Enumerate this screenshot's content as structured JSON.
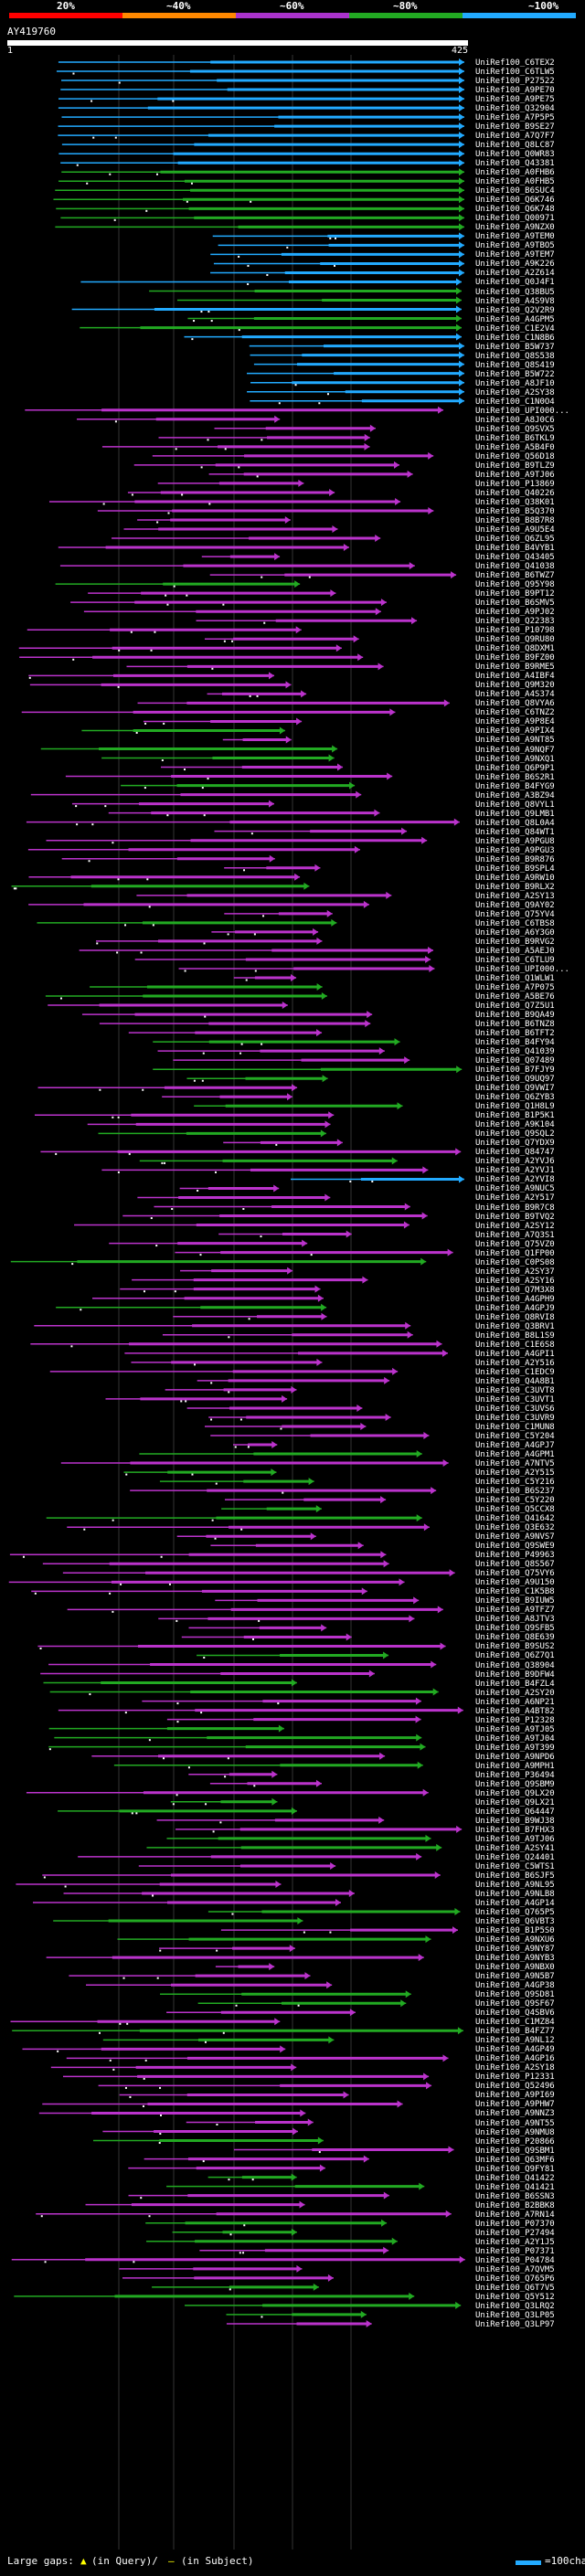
{
  "query": {
    "id": "AY419760",
    "start": "1",
    "end": "425"
  },
  "scale": {
    "labels": [
      "20%",
      "~40%",
      "~60%",
      "~80%",
      "~100%"
    ],
    "colors": [
      "#ff0000",
      "#ff8800",
      "#aa33cc",
      "#22aa22",
      "#22aaff"
    ]
  },
  "legend": {
    "gaps_label": "Large gaps:",
    "gap_query_symbol": "▲",
    "gap_query_text": "(in Query)/",
    "gap_subject_symbol": "—",
    "gap_subject_text": "(in Subject)",
    "scale_text": "=100char."
  },
  "hits": [
    "UniRef100_C6TEX2",
    "UniRef100_C6TLW5",
    "UniRef100_P27522",
    "UniRef100_A9PE70",
    "UniRef100_A9PE75",
    "UniRef100_Q32904",
    "UniRef100_A7P5P5",
    "UniRef100_B9SE27",
    "UniRef100_A7Q7F7",
    "UniRef100_Q8LC87",
    "UniRef100_Q0WR83",
    "UniRef100_Q43381",
    "UniRef100_A0FHB6",
    "UniRef100_A0FHB5",
    "UniRef100_B6SUC4",
    "UniRef100_Q6K746",
    "UniRef100_Q6K748",
    "UniRef100_Q00971",
    "UniRef100_A9NZX0",
    "UniRef100_A9TEM0",
    "UniRef100_A9TBO5",
    "UniRef100_A9TEM7",
    "UniRef100_A9K226",
    "UniRef100_A2Z614",
    "UniRef100_Q0J4F1",
    "UniRef100_Q38BU5",
    "UniRef100_A4S9V8",
    "UniRef100_Q2V2R9",
    "UniRef100_A4GPM5",
    "UniRef100_C1E2V4",
    "UniRef100_C1N8B6",
    "UniRef100_B5W737",
    "UniRef100_Q8S538",
    "UniRef100_Q8S419",
    "UniRef100_B5W722",
    "UniRef100_A8JF10",
    "UniRef100_A2SY38",
    "UniRef100_C1N0O4",
    "UniRef100_UPI000...",
    "UniRef100_A8J0C6",
    "UniRef100_Q9SVX5",
    "UniRef100_B6TKL9",
    "UniRef100_A5B4F0",
    "UniRef100_Q56D18",
    "UniRef100_B9TLZ9",
    "UniRef100_A9TJ06",
    "UniRef100_P13869",
    "UniRef100_Q40226",
    "UniRef100_Q38K01",
    "UniRef100_B5Q370",
    "UniRef100_B8B7R8",
    "UniRef100_A9U5E4",
    "UniRef100_Q6ZL95",
    "UniRef100_B4VYB1",
    "UniRef100_Q43405",
    "UniRef100_Q41038",
    "UniRef100_B6TWZ7",
    "UniRef100_Q95Y98",
    "UniRef100_B9PT12",
    "UniRef100_B6SMV5",
    "UniRef100_A9PJ02",
    "UniRef100_Q22383",
    "UniRef100_P10798",
    "UniRef100_Q9RU80",
    "UniRef100_Q8DXM1",
    "UniRef100_B9FZ00",
    "UniRef100_B9RME5",
    "UniRef100_A4IBF4",
    "UniRef100_Q9M320",
    "UniRef100_A4S374",
    "UniRef100_Q8VYA6",
    "UniRef100_C6TNZ2",
    "UniRef100_A9P8E4",
    "UniRef100_A9PIX4",
    "UniRef100_A9NT85",
    "UniRef100_A9NQF7",
    "UniRef100_A9NXQ1",
    "UniRef100_Q6P9P1",
    "UniRef100_B6S2R1",
    "UniRef100_B4FYG9",
    "UniRef100_A3BZ94",
    "UniRef100_Q8VYL1",
    "UniRef100_Q9LMB1",
    "UniRef100_Q8L0A4",
    "UniRef100_Q84WT1",
    "UniRef100_A9PGU8",
    "UniRef100_A9PGU3",
    "UniRef100_B9R876",
    "UniRef100_B9SPL4",
    "UniRef100_A9RW10",
    "UniRef100_B9RLX2",
    "UniRef100_A2SY13",
    "UniRef100_Q9AY02",
    "UniRef100_Q75YV4",
    "UniRef100_C6TBS8",
    "UniRef100_A6Y3G0",
    "UniRef100_B9RVG2",
    "UniRef100_A5AEJ0",
    "UniRef100_C6TLU9",
    "UniRef100_UPI000...",
    "UniRef100_Q1WLW1",
    "UniRef100_A7P075",
    "UniRef100_A5BE76",
    "UniRef100_Q7Z5U1",
    "UniRef100_B9QA49",
    "UniRef100_B6TNZ8",
    "UniRef100_B6TFT2",
    "UniRef100_B4FY94",
    "UniRef100_Q41039",
    "UniRef100_Q07489",
    "UniRef100_B7FJY9",
    "UniRef100_Q9UQ97",
    "UniRef100_Q9VWI7",
    "UniRef100_Q6ZYB3",
    "UniRef100_Q1H8L9",
    "UniRef100_B1P5K1",
    "UniRef100_A9K104",
    "UniRef100_Q9SQL2",
    "UniRef100_Q7YDX9",
    "UniRef100_Q84747",
    "UniRef100_A2YVJ6",
    "UniRef100_A2YVJ1",
    "UniRef100_A2YVI8",
    "UniRef100_A9NUC5",
    "UniRef100_A2Y517",
    "UniRef100_B9R7C8",
    "UniRef100_B9TVQ2",
    "UniRef100_A2SY12",
    "UniRef100_A7Q3S1",
    "UniRef100_Q75VZ0",
    "UniRef100_Q1FP00",
    "UniRef100_C0PS08",
    "UniRef100_A2SY37",
    "UniRef100_A2SY16",
    "UniRef100_Q7M3X8",
    "UniRef100_A4GPH9",
    "UniRef100_A4GPJ9",
    "UniRef100_Q8RVI8",
    "UniRef100_Q3BRV1",
    "UniRef100_B8L1S9",
    "UniRef100_C1E6S8",
    "UniRef100_A4GPI1",
    "UniRef100_A2Y516",
    "UniRef100_C1EDC9",
    "UniRef100_Q4A8B1",
    "UniRef100_C3UVT8",
    "UniRef100_C3UVT1",
    "UniRef100_C3UVS6",
    "UniRef100_C3UVR9",
    "UniRef100_C1MUN8",
    "UniRef100_C5Y204",
    "UniRef100_A4GPJ7",
    "UniRef100_A4GPM1",
    "UniRef100_A7NTV5",
    "UniRef100_A2Y515",
    "UniRef100_C5Y216",
    "UniRef100_B6S237",
    "UniRef100_C5Y220",
    "UniRef100_Q5CCX8",
    "UniRef100_Q41642",
    "UniRef100_Q3E632",
    "UniRef100_A9NVS7",
    "UniRef100_Q9SWE9",
    "UniRef100_P49963",
    "UniRef100_Q8S567",
    "UniRef100_Q75VY6",
    "UniRef100_A9U150",
    "UniRef100_C1K5B8",
    "UniRef100_B9IUW5",
    "UniRef100_A9TFZ7",
    "UniRef100_A8JTV3",
    "UniRef100_Q9SFB5",
    "UniRef100_Q8E639",
    "UniRef100_B9SUS2",
    "UniRef100_Q6Z7Q1",
    "UniRef100_Q38904",
    "UniRef100_B9DFW4",
    "UniRef100_B4FZL4",
    "UniRef100_A2SY20",
    "UniRef100_A6NP21",
    "UniRef100_A4BT82",
    "UniRef100_P12328",
    "UniRef100_A9TJ05",
    "UniRef100_A9TJ04",
    "UniRef100_A9T399",
    "UniRef100_A9NPD6",
    "UniRef100_A9MPH1",
    "UniRef100_P36494",
    "UniRef100_Q9SBM9",
    "UniRef100_Q9LX20",
    "UniRef100_Q9LX21",
    "UniRef100_Q64447",
    "UniRef100_B9WJ38",
    "UniRef100_B7FHX3",
    "UniRef100_A9TJ06",
    "UniRef100_A2SY41",
    "UniRef100_Q24401",
    "UniRef100_C5WTS1",
    "UniRef100_B6SJF5",
    "UniRef100_A9NL95",
    "UniRef100_A9NLB8",
    "UniRef100_A4GP14",
    "UniRef100_Q765P5",
    "UniRef100_Q6VBT3",
    "UniRef100_B1P5S0",
    "UniRef100_A9NXU6",
    "UniRef100_A9NY87",
    "UniRef100_A9NYB3",
    "UniRef100_A9NBX0",
    "UniRef100_A9N5B7",
    "UniRef100_A4GP38",
    "UniRef100_Q9SD81",
    "UniRef100_Q9SF67",
    "UniRef100_Q4SBV6",
    "UniRef100_C1MZ84",
    "UniRef100_B4FZ77",
    "UniRef100_A9NL12",
    "UniRef100_A4GP49",
    "UniRef100_A4GP16",
    "UniRef100_A2SY18",
    "UniRef100_P12331",
    "UniRef100_Q52496",
    "UniRef100_A9PI69",
    "UniRef100_A9PHW7",
    "UniRef100_A9NNZ3",
    "UniRef100_A9NT55",
    "UniRef100_A9NMU8",
    "UniRef100_P20866",
    "UniRef100_Q9SBM1",
    "UniRef100_Q63MF6",
    "UniRef100_Q9FY81",
    "UniRef100_Q41422",
    "UniRef100_Q41421",
    "UniRef100_B6SSN3",
    "UniRef100_B2BBK8",
    "UniRef100_A7RN14",
    "UniRef100_P07370",
    "UniRef100_P27494",
    "UniRef100_A2Y1J5",
    "UniRef100_P07371",
    "UniRef100_P04784",
    "UniRef100_A7QVM5",
    "UniRef100_Q765P6",
    "UniRef100_Q6T7V5",
    "UniRef100_Q5Y512",
    "UniRef100_Q3LRQ2",
    "UniRef100_Q3LP05",
    "UniRef100_Q3LP97"
  ]
}
